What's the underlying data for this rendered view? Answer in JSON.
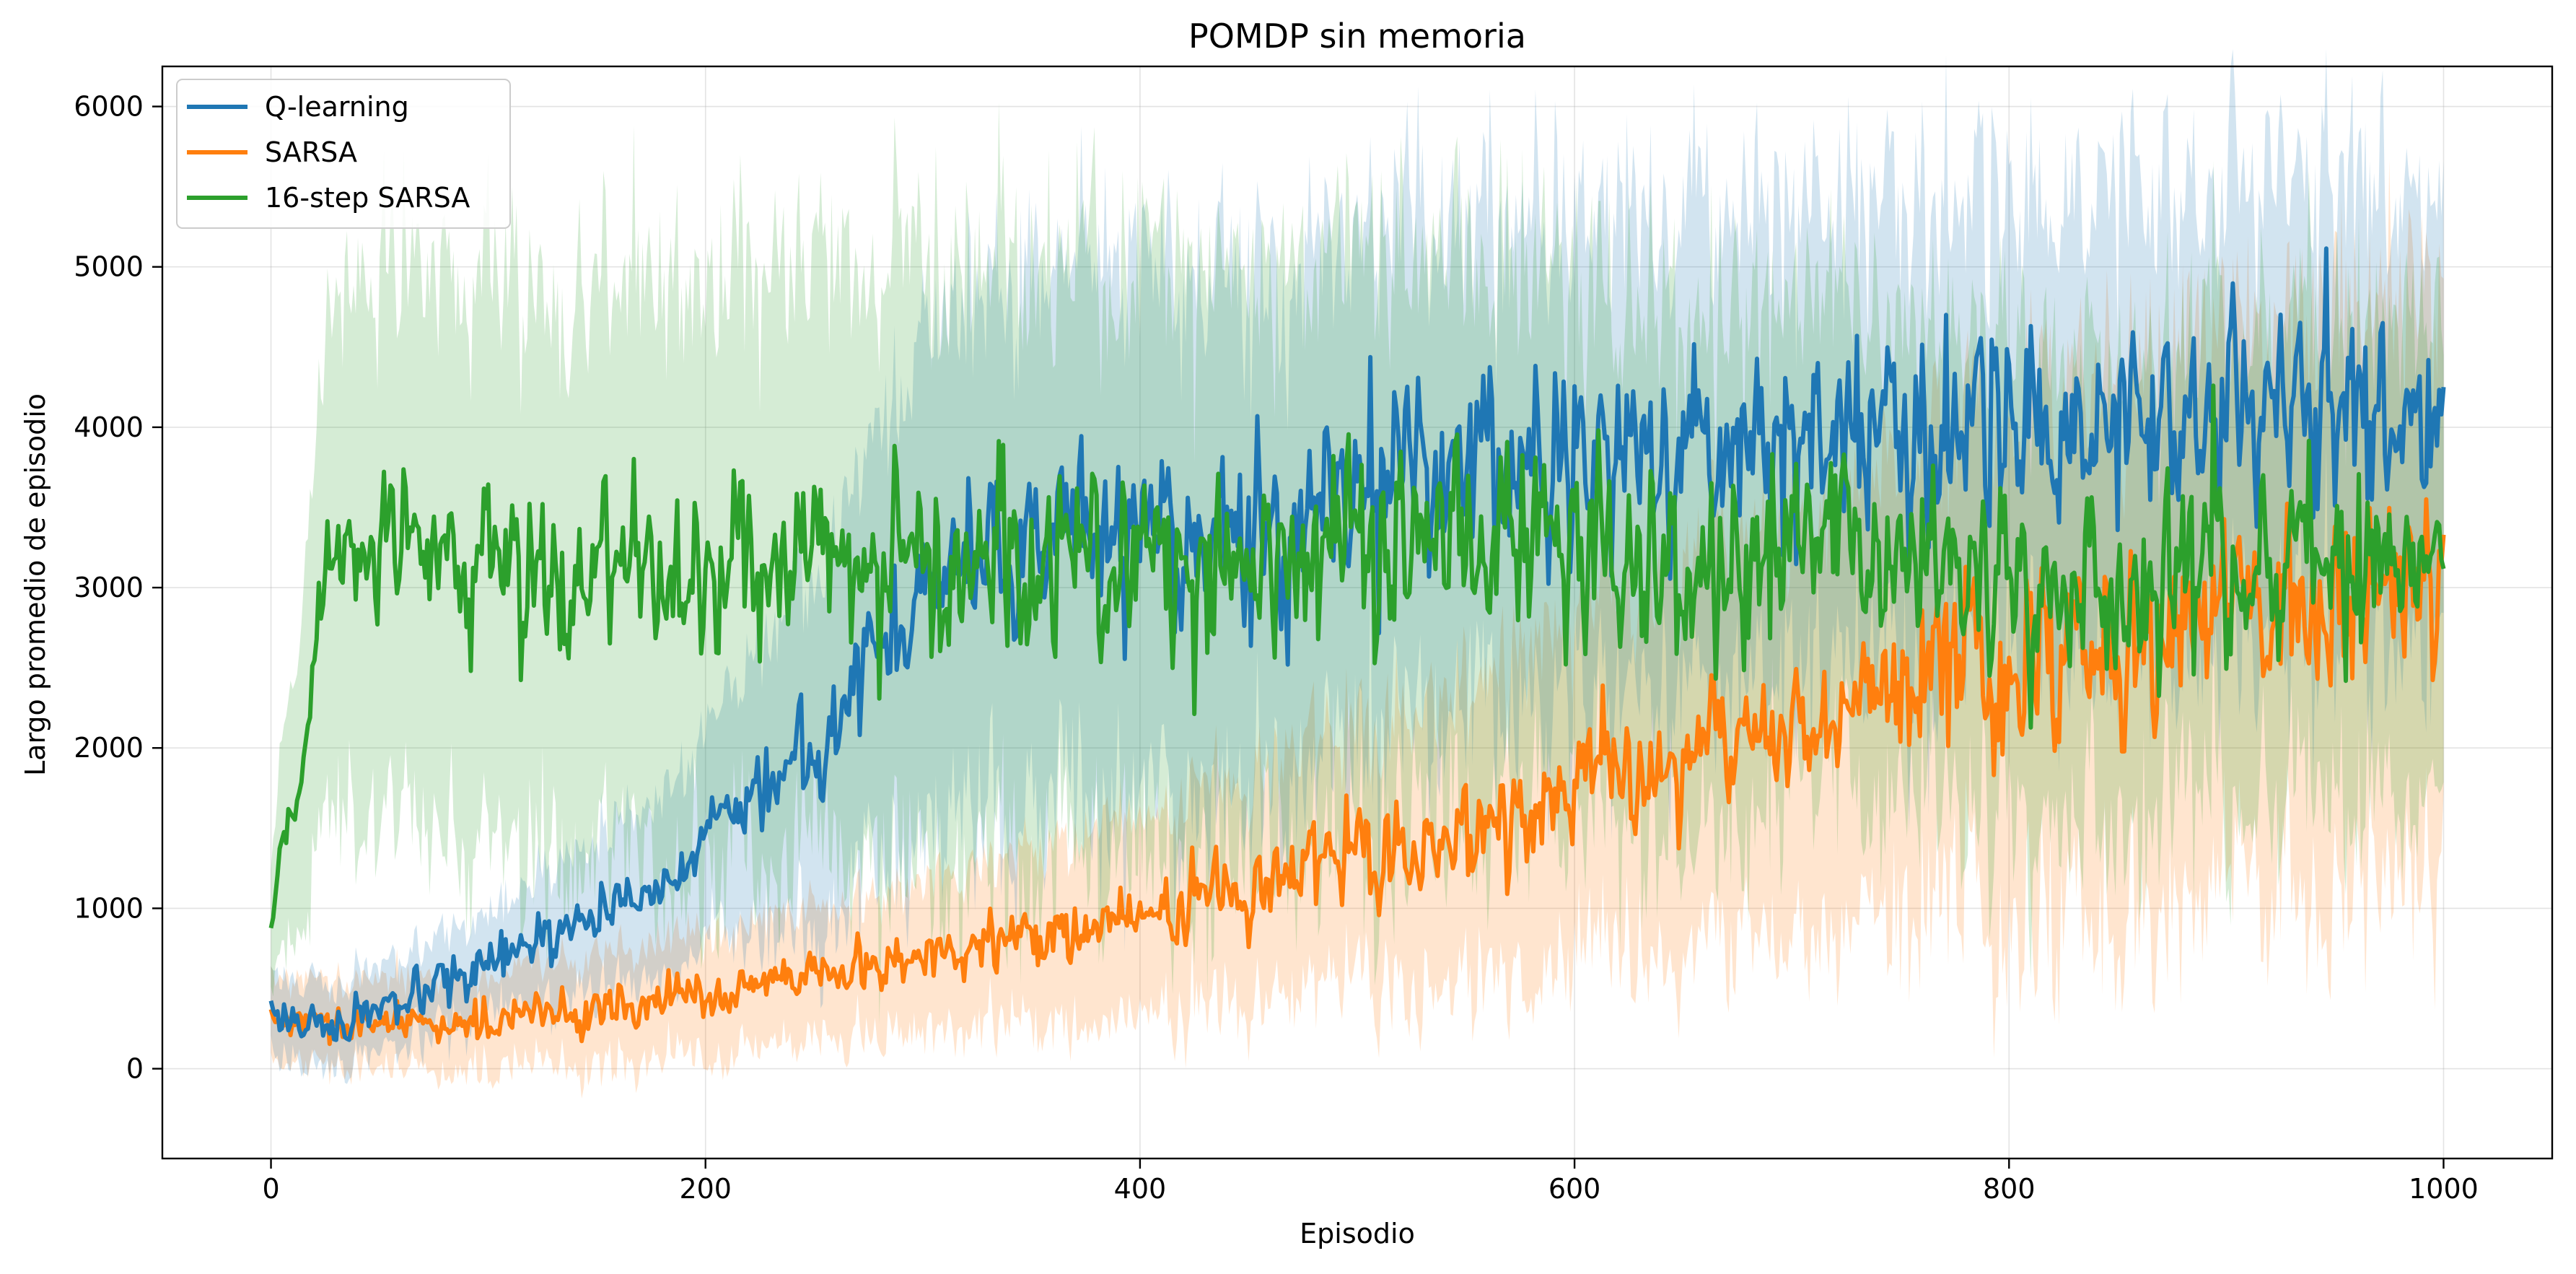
{
  "chart_data": {
    "type": "line",
    "title": "POMDP sin memoria",
    "xlabel": "Episodio",
    "ylabel": "Largo promedio de episodio",
    "xlim": [
      -50,
      1050
    ],
    "ylim": [
      -560,
      6250
    ],
    "xticks": [
      0,
      200,
      400,
      600,
      800,
      1000
    ],
    "yticks": [
      0,
      1000,
      2000,
      3000,
      4000,
      5000,
      6000
    ],
    "grid": true,
    "legend_position": "top-left",
    "band": "shaded variability band around each mean curve",
    "series": [
      {
        "name": "Q-learning",
        "color": "#1f77b4",
        "anchors": [
          [
            0,
            380
          ],
          [
            5,
            340
          ],
          [
            20,
            270
          ],
          [
            40,
            300
          ],
          [
            60,
            380
          ],
          [
            80,
            500
          ],
          [
            100,
            620
          ],
          [
            120,
            760
          ],
          [
            140,
            900
          ],
          [
            160,
            1020
          ],
          [
            180,
            1180
          ],
          [
            200,
            1400
          ],
          [
            220,
            1650
          ],
          [
            240,
            1900
          ],
          [
            260,
            2200
          ],
          [
            280,
            2650
          ],
          [
            300,
            2950
          ],
          [
            320,
            3100
          ],
          [
            340,
            3250
          ],
          [
            360,
            3350
          ],
          [
            380,
            3350
          ],
          [
            400,
            3300
          ],
          [
            420,
            3300
          ],
          [
            440,
            3350
          ],
          [
            460,
            3450
          ],
          [
            480,
            3500
          ],
          [
            500,
            3600
          ],
          [
            520,
            3700
          ],
          [
            540,
            3750
          ],
          [
            560,
            3800
          ],
          [
            600,
            3820
          ],
          [
            640,
            3900
          ],
          [
            680,
            3900
          ],
          [
            720,
            3950
          ],
          [
            760,
            4000
          ],
          [
            800,
            4050
          ],
          [
            840,
            4080
          ],
          [
            880,
            4100
          ],
          [
            920,
            4120
          ],
          [
            960,
            4150
          ],
          [
            1000,
            4150
          ]
        ],
        "noise": [
          [
            0,
            60
          ],
          [
            200,
            90
          ],
          [
            300,
            200
          ],
          [
            500,
            300
          ],
          [
            1000,
            300
          ]
        ],
        "band": [
          [
            0,
            250
          ],
          [
            100,
            300
          ],
          [
            200,
            650
          ],
          [
            300,
            1600
          ],
          [
            400,
            1700
          ],
          [
            600,
            1500
          ],
          [
            800,
            1400
          ],
          [
            1000,
            1400
          ]
        ]
      },
      {
        "name": "SARSA",
        "color": "#ff7f0e",
        "anchors": [
          [
            0,
            300
          ],
          [
            20,
            270
          ],
          [
            40,
            260
          ],
          [
            60,
            280
          ],
          [
            80,
            300
          ],
          [
            100,
            300
          ],
          [
            150,
            370
          ],
          [
            200,
            450
          ],
          [
            250,
            560
          ],
          [
            300,
            680
          ],
          [
            350,
            820
          ],
          [
            400,
            950
          ],
          [
            450,
            1120
          ],
          [
            500,
            1300
          ],
          [
            550,
            1480
          ],
          [
            600,
            1700
          ],
          [
            650,
            1920
          ],
          [
            700,
            2150
          ],
          [
            750,
            2380
          ],
          [
            800,
            2550
          ],
          [
            850,
            2700
          ],
          [
            900,
            2850
          ],
          [
            950,
            3000
          ],
          [
            1000,
            3150
          ]
        ],
        "noise": [
          [
            0,
            50
          ],
          [
            300,
            80
          ],
          [
            500,
            130
          ],
          [
            700,
            200
          ],
          [
            800,
            280
          ],
          [
            1000,
            330
          ]
        ],
        "band": [
          [
            0,
            250
          ],
          [
            100,
            300
          ],
          [
            300,
            450
          ],
          [
            500,
            800
          ],
          [
            700,
            1300
          ],
          [
            800,
            1600
          ],
          [
            1000,
            1900
          ]
        ]
      },
      {
        "name": "16-step SARSA",
        "color": "#2ca02c",
        "anchors": [
          [
            0,
            820
          ],
          [
            3,
            1150
          ],
          [
            6,
            1400
          ],
          [
            10,
            1550
          ],
          [
            14,
            1900
          ],
          [
            18,
            2400
          ],
          [
            22,
            2800
          ],
          [
            26,
            3050
          ],
          [
            30,
            3150
          ],
          [
            40,
            3200
          ],
          [
            60,
            3250
          ],
          [
            100,
            3150
          ],
          [
            150,
            3200
          ],
          [
            200,
            3200
          ],
          [
            250,
            3150
          ],
          [
            300,
            3150
          ],
          [
            350,
            3150
          ],
          [
            400,
            3150
          ],
          [
            450,
            3150
          ],
          [
            500,
            3200
          ],
          [
            550,
            3250
          ],
          [
            600,
            3200
          ],
          [
            650,
            3150
          ],
          [
            700,
            3200
          ],
          [
            750,
            3200
          ],
          [
            800,
            3150
          ],
          [
            850,
            3100
          ],
          [
            900,
            3100
          ],
          [
            950,
            3150
          ],
          [
            1000,
            3200
          ]
        ],
        "noise": [
          [
            0,
            80
          ],
          [
            30,
            160
          ],
          [
            100,
            280
          ],
          [
            1000,
            280
          ]
        ],
        "band": [
          [
            0,
            400
          ],
          [
            20,
            1300
          ],
          [
            40,
            1700
          ],
          [
            300,
            1900
          ],
          [
            500,
            1800
          ],
          [
            800,
            1400
          ],
          [
            1000,
            1500
          ]
        ]
      }
    ]
  }
}
